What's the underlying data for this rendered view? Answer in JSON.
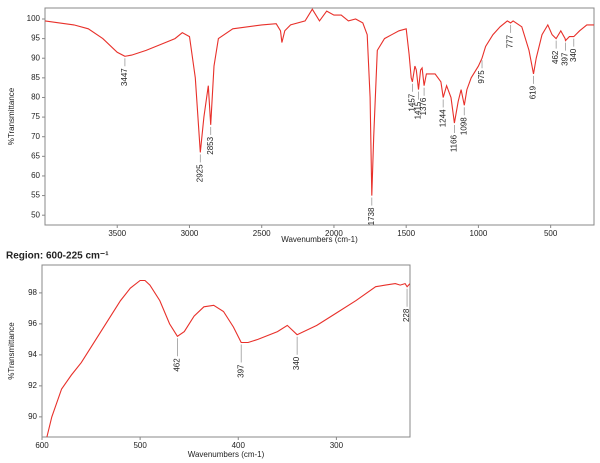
{
  "chart_data": [
    {
      "type": "line",
      "xlabel": "Wavenumbers (cm-1)",
      "ylabel": "%Transmittance",
      "color": "#e8302a",
      "xlim": [
        4000,
        200
      ],
      "ylim": [
        47.5,
        102.8
      ],
      "xticks": [
        3500,
        3000,
        2500,
        2000,
        1500,
        1000,
        500
      ],
      "yticks": [
        50,
        55,
        60,
        65,
        70,
        75,
        80,
        85,
        90,
        95,
        100
      ],
      "x": [
        4000,
        3900,
        3800,
        3700,
        3600,
        3500,
        3447,
        3400,
        3300,
        3200,
        3100,
        3050,
        3000,
        2960,
        2925,
        2900,
        2870,
        2853,
        2830,
        2800,
        2700,
        2500,
        2400,
        2370,
        2360,
        2340,
        2300,
        2200,
        2150,
        2100,
        2050,
        2000,
        1950,
        1900,
        1850,
        1800,
        1770,
        1750,
        1738,
        1725,
        1700,
        1650,
        1600,
        1550,
        1500,
        1480,
        1465,
        1457,
        1440,
        1430,
        1415,
        1400,
        1390,
        1376,
        1360,
        1300,
        1260,
        1244,
        1220,
        1190,
        1166,
        1140,
        1120,
        1098,
        1080,
        1050,
        1000,
        975,
        950,
        900,
        850,
        800,
        777,
        760,
        700,
        650,
        619,
        600,
        560,
        520,
        490,
        462,
        430,
        400,
        397,
        370,
        340,
        300,
        250,
        200
      ],
      "values": [
        99.5,
        99,
        98.5,
        97.5,
        95,
        91.5,
        90.5,
        90.8,
        92,
        93.5,
        95,
        96.5,
        95.5,
        85,
        66,
        75,
        83,
        73,
        88,
        95,
        97.5,
        98.5,
        98.8,
        97,
        94,
        97,
        98.5,
        99.5,
        102.5,
        99.5,
        102,
        101,
        101,
        99.5,
        100,
        99,
        96,
        80,
        55,
        70,
        92,
        95,
        96,
        97,
        97.5,
        91,
        85,
        84,
        88,
        87,
        82,
        87,
        87.5,
        83,
        86,
        86,
        84,
        80,
        83,
        80,
        73.5,
        79,
        82,
        78,
        82,
        85,
        88,
        90,
        93,
        96,
        98,
        99.5,
        99,
        99.5,
        98,
        92,
        86,
        90,
        96,
        98.5,
        96,
        95,
        97,
        95,
        94.5,
        95.5,
        95.5,
        97,
        98.5,
        98.5
      ],
      "peaks": {
        "x": [
          3447,
          2925,
          2853,
          1738,
          1457,
          1415,
          1376,
          1244,
          1166,
          1098,
          975,
          777,
          619,
          462,
          397,
          340
        ],
        "y": [
          90.5,
          66,
          73,
          55,
          84,
          82,
          83,
          80,
          73.5,
          78,
          90,
          99,
          86,
          95,
          94.5,
          95.5
        ]
      }
    },
    {
      "type": "line",
      "title": "Region: 600-225 cm⁻¹",
      "xlabel": "Wavenumbers (cm-1)",
      "ylabel": "%Transmittance",
      "color": "#e8302a",
      "xlim": [
        600,
        225
      ],
      "ylim": [
        88.7,
        99.8
      ],
      "xticks": [
        600,
        500,
        400,
        300
      ],
      "yticks": [
        90,
        92,
        94,
        96,
        98
      ],
      "x": [
        595,
        590,
        580,
        570,
        560,
        550,
        540,
        530,
        520,
        510,
        500,
        495,
        490,
        480,
        470,
        462,
        455,
        445,
        435,
        425,
        415,
        405,
        397,
        390,
        380,
        360,
        350,
        340,
        320,
        300,
        280,
        260,
        250,
        240,
        235,
        230,
        228,
        225
      ],
      "values": [
        88.7,
        90,
        91.8,
        92.7,
        93.5,
        94.5,
        95.5,
        96.5,
        97.5,
        98.3,
        98.8,
        98.8,
        98.5,
        97.5,
        96,
        95.2,
        95.5,
        96.5,
        97.1,
        97.2,
        96.8,
        95.8,
        94.8,
        94.8,
        95,
        95.5,
        95.9,
        95.3,
        95.9,
        96.7,
        97.5,
        98.4,
        98.5,
        98.6,
        98.5,
        98.6,
        98.4,
        98.6
      ],
      "peaks": {
        "x": [
          462,
          397,
          340,
          228
        ],
        "y": [
          95.2,
          94.8,
          95.3,
          98.4
        ]
      }
    }
  ]
}
